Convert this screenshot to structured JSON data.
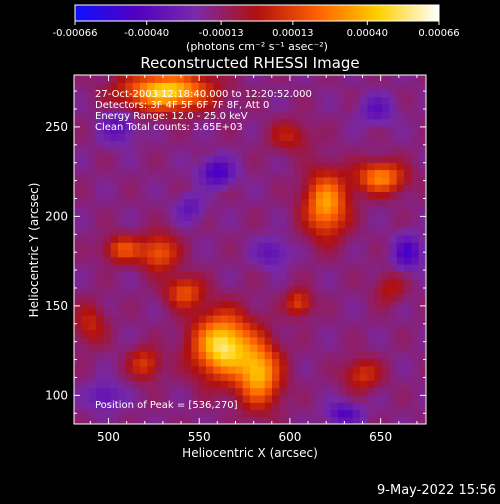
{
  "chart_data": {
    "type": "heatmap",
    "title": "Reconstructed RHESSI Image",
    "xlabel": "Heliocentric X (arcsec)",
    "ylabel": "Heliocentric Y (arcsec)",
    "xlim": [
      481,
      675
    ],
    "ylim": [
      84,
      279
    ],
    "xticks": [
      500,
      550,
      600,
      650
    ],
    "yticks": [
      100,
      150,
      200,
      250
    ],
    "colorbar": {
      "ticks": [
        "-0.00066",
        "-0.00040",
        "-0.00013",
        "0.00013",
        "0.00040",
        "0.00066"
      ],
      "tick_values": [
        -0.00066,
        -0.0004,
        -0.00013,
        0.00013,
        0.0004,
        0.00066
      ],
      "range": [
        -0.00066,
        0.00066
      ],
      "units": "(photons cm⁻² s⁻¹ asec⁻²)",
      "colors": [
        "#1010ff",
        "#5000c0",
        "#7a2aa8",
        "#b01010",
        "#ff6000",
        "#ffd000",
        "#ffffff"
      ]
    },
    "annotations": [
      "27-Oct-2003 12:18:40.000 to 12:20:52.000",
      "Detectors: 3F 4F 5F 6F 7F 8F, Att 0",
      "Energy Range: 12.0 - 25.0 keV",
      "Clean    Total counts: 3.65E+03"
    ],
    "peak_label": "Position of Peak = [536,270]",
    "peak": [
      536,
      270
    ],
    "sources": [
      {
        "x": 563,
        "y": 128,
        "sx": 11,
        "sy": 12,
        "amp": 0.00064
      },
      {
        "x": 583,
        "y": 112,
        "sx": 8,
        "sy": 12,
        "amp": 0.0005
      },
      {
        "x": 532,
        "y": 270,
        "sx": 16,
        "sy": 7,
        "amp": 0.0006
      },
      {
        "x": 620,
        "y": 207,
        "sx": 8,
        "sy": 12,
        "amp": 0.00048
      },
      {
        "x": 650,
        "y": 222,
        "sx": 9,
        "sy": 6,
        "amp": 0.00042
      },
      {
        "x": 528,
        "y": 180,
        "sx": 7,
        "sy": 7,
        "amp": 0.00032
      },
      {
        "x": 508,
        "y": 182,
        "sx": 7,
        "sy": 5,
        "amp": 0.0003
      },
      {
        "x": 542,
        "y": 158,
        "sx": 7,
        "sy": 6,
        "amp": 0.0003
      },
      {
        "x": 605,
        "y": 152,
        "sx": 5,
        "sy": 5,
        "amp": 0.00026
      },
      {
        "x": 520,
        "y": 118,
        "sx": 6,
        "sy": 6,
        "amp": 0.00024
      },
      {
        "x": 640,
        "y": 112,
        "sx": 7,
        "sy": 6,
        "amp": 0.00022
      },
      {
        "x": 490,
        "y": 140,
        "sx": 6,
        "sy": 8,
        "amp": 0.00018
      },
      {
        "x": 600,
        "y": 245,
        "sx": 8,
        "sy": 6,
        "amp": 0.00016
      },
      {
        "x": 655,
        "y": 160,
        "sx": 6,
        "sy": 6,
        "amp": 0.00014
      },
      {
        "x": 560,
        "y": 225,
        "sx": 6,
        "sy": 5,
        "amp": -0.00036
      },
      {
        "x": 665,
        "y": 180,
        "sx": 5,
        "sy": 6,
        "amp": -0.00034
      },
      {
        "x": 630,
        "y": 90,
        "sx": 6,
        "sy": 4,
        "amp": -0.0003
      },
      {
        "x": 505,
        "y": 250,
        "sx": 6,
        "sy": 6,
        "amp": -0.00022
      },
      {
        "x": 590,
        "y": 180,
        "sx": 6,
        "sy": 5,
        "amp": -0.0002
      },
      {
        "x": 498,
        "y": 100,
        "sx": 6,
        "sy": 5,
        "amp": -0.0002
      },
      {
        "x": 648,
        "y": 260,
        "sx": 6,
        "sy": 5,
        "amp": -0.00022
      },
      {
        "x": 545,
        "y": 205,
        "sx": 5,
        "sy": 5,
        "amp": -0.00018
      }
    ]
  },
  "footer_date": "9-May-2022 15:56"
}
